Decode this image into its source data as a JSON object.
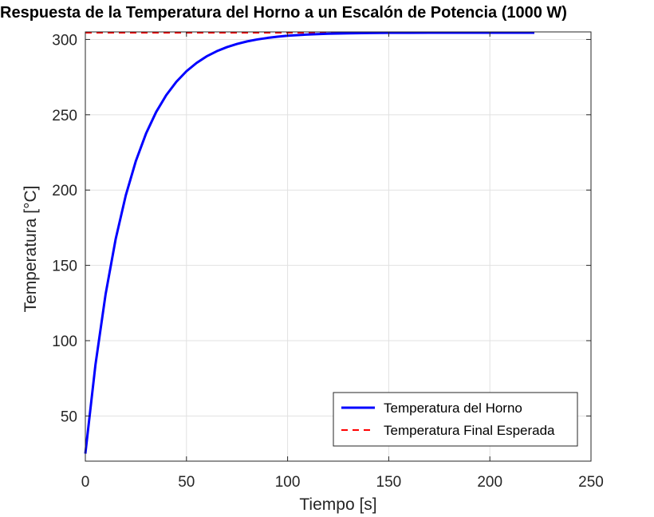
{
  "chart_data": {
    "type": "line",
    "title": "Respuesta de la Temperatura del Horno a un Escalón de Potencia (1000 W)",
    "xlabel": "Tiempo [s]",
    "ylabel": "Temperatura [°C]",
    "xlim": [
      0,
      250
    ],
    "ylim": [
      20,
      305
    ],
    "xticks": [
      "0",
      "50",
      "100",
      "150",
      "200",
      "250"
    ],
    "yticks": [
      "50",
      "100",
      "150",
      "200",
      "250",
      "300"
    ],
    "grid": true,
    "legend_position": "bottom-right",
    "series": [
      {
        "name": "Temperatura del Horno",
        "color": "#0000ff",
        "style": "solid",
        "x": [
          0,
          5,
          10,
          15,
          20,
          25,
          30,
          35,
          40,
          45,
          50,
          55,
          60,
          65,
          70,
          75,
          80,
          85,
          90,
          95,
          100,
          110,
          120,
          130,
          140,
          150,
          160,
          170,
          180,
          190,
          200,
          210,
          222
        ],
        "y": [
          25,
          84,
          130.7,
          167.5,
          196.5,
          219.4,
          237.5,
          251.8,
          263,
          271.9,
          278.9,
          284.4,
          288.8,
          292.2,
          294.9,
          297,
          298.7,
          300,
          301,
          301.8,
          302.5,
          303.3,
          303.8,
          304.1,
          304.3,
          304.4,
          304.4,
          304.5,
          304.5,
          304.5,
          304.5,
          304.5,
          304.5
        ]
      },
      {
        "name": "Temperatura Final Esperada",
        "color": "#ff0000",
        "style": "dashed",
        "x": [
          0,
          222
        ],
        "y": [
          304.5,
          304.5
        ]
      }
    ]
  }
}
